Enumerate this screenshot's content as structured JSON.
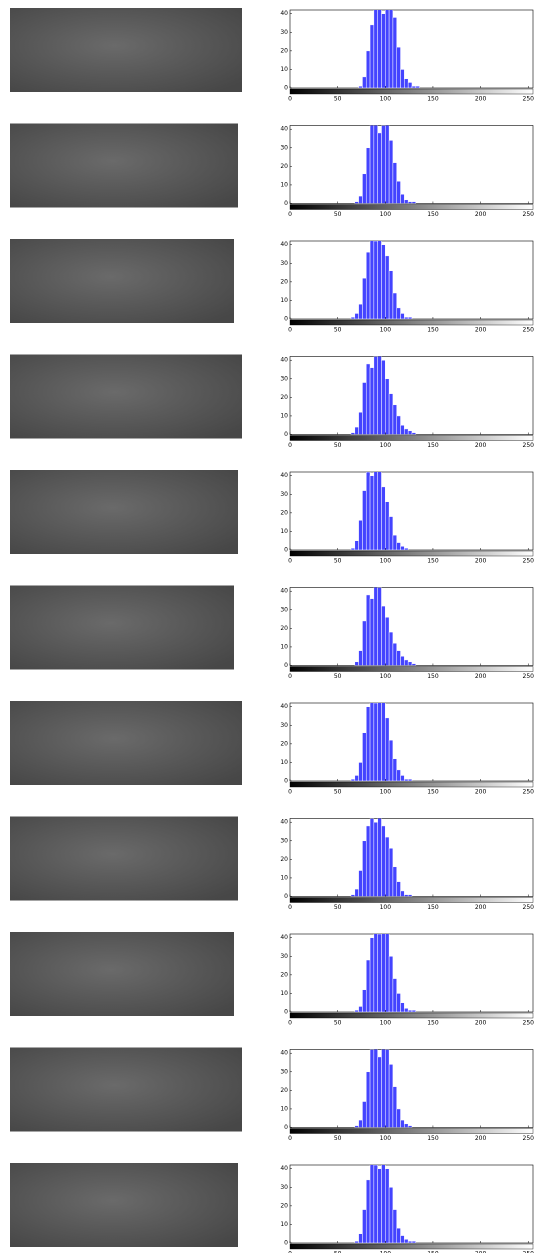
{
  "chart_data": [
    {
      "type": "histogram",
      "bins": [
        72,
        76,
        80,
        84,
        88,
        92,
        96,
        100,
        104,
        108,
        112,
        116,
        120,
        124,
        128,
        132,
        136,
        140,
        144
      ],
      "counts": [
        1,
        6,
        20,
        34,
        44,
        46,
        40,
        44,
        47,
        38,
        22,
        10,
        5,
        3,
        1,
        1,
        0,
        0
      ],
      "color": "#4444ff",
      "xlim": [
        0,
        255
      ],
      "ylim": [
        0,
        42
      ],
      "xticks": [
        0,
        50,
        100,
        150,
        200,
        250
      ],
      "yticks": [
        0,
        10,
        20,
        30,
        40
      ]
    },
    {
      "type": "histogram",
      "bins": [
        68,
        72,
        76,
        80,
        84,
        88,
        92,
        96,
        100,
        104,
        108,
        112,
        116,
        120,
        124,
        128,
        132,
        136,
        140
      ],
      "counts": [
        1,
        4,
        16,
        30,
        43,
        45,
        38,
        42,
        44,
        34,
        22,
        12,
        5,
        2,
        1,
        1,
        0,
        0
      ],
      "color": "#4444ff",
      "xlim": [
        0,
        255
      ],
      "ylim": [
        0,
        42
      ],
      "xticks": [
        0,
        50,
        100,
        150,
        200,
        250
      ],
      "yticks": [
        0,
        10,
        20,
        30,
        40
      ]
    },
    {
      "type": "histogram",
      "bins": [
        64,
        68,
        72,
        76,
        80,
        84,
        88,
        92,
        96,
        100,
        104,
        108,
        112,
        116,
        120,
        124,
        128,
        132,
        136
      ],
      "counts": [
        1,
        3,
        8,
        22,
        36,
        44,
        42,
        46,
        40,
        34,
        26,
        14,
        6,
        3,
        1,
        1,
        0,
        0
      ],
      "color": "#4444ff",
      "xlim": [
        0,
        255
      ],
      "ylim": [
        0,
        42
      ],
      "xticks": [
        0,
        50,
        100,
        150,
        200,
        250
      ],
      "yticks": [
        0,
        10,
        20,
        30,
        40
      ]
    },
    {
      "type": "histogram",
      "bins": [
        64,
        68,
        72,
        76,
        80,
        84,
        88,
        92,
        96,
        100,
        104,
        108,
        112,
        116,
        120,
        124,
        128,
        132,
        136
      ],
      "counts": [
        1,
        4,
        12,
        28,
        38,
        36,
        42,
        44,
        40,
        30,
        22,
        16,
        10,
        5,
        3,
        2,
        1,
        0
      ],
      "color": "#4444ff",
      "xlim": [
        0,
        255
      ],
      "ylim": [
        0,
        42
      ],
      "xticks": [
        0,
        50,
        100,
        150,
        200,
        250
      ],
      "yticks": [
        0,
        10,
        20,
        30,
        40
      ]
    },
    {
      "type": "histogram",
      "bins": [
        64,
        68,
        72,
        76,
        80,
        84,
        88,
        92,
        96,
        100,
        104,
        108,
        112,
        116,
        120,
        124,
        128,
        132,
        136
      ],
      "counts": [
        1,
        5,
        16,
        32,
        42,
        40,
        46,
        44,
        34,
        26,
        18,
        8,
        4,
        2,
        1,
        0,
        0,
        0
      ],
      "color": "#4444ff",
      "xlim": [
        0,
        255
      ],
      "ylim": [
        0,
        42
      ],
      "xticks": [
        0,
        50,
        100,
        150,
        200,
        250
      ],
      "yticks": [
        0,
        10,
        20,
        30,
        40
      ]
    },
    {
      "type": "histogram",
      "bins": [
        68,
        72,
        76,
        80,
        84,
        88,
        92,
        96,
        100,
        104,
        108,
        112,
        116,
        120,
        124,
        128,
        132,
        136,
        140
      ],
      "counts": [
        2,
        8,
        24,
        38,
        36,
        44,
        42,
        32,
        26,
        18,
        12,
        8,
        5,
        3,
        2,
        1,
        0,
        0
      ],
      "color": "#4444ff",
      "xlim": [
        0,
        255
      ],
      "ylim": [
        0,
        42
      ],
      "xticks": [
        0,
        50,
        100,
        150,
        200,
        250
      ],
      "yticks": [
        0,
        10,
        20,
        30,
        40
      ]
    },
    {
      "type": "histogram",
      "bins": [
        64,
        68,
        72,
        76,
        80,
        84,
        88,
        92,
        96,
        100,
        104,
        108,
        112,
        116,
        120,
        124,
        128,
        132,
        136
      ],
      "counts": [
        1,
        3,
        10,
        26,
        40,
        44,
        42,
        46,
        44,
        34,
        22,
        12,
        6,
        3,
        1,
        1,
        0,
        0
      ],
      "color": "#4444ff",
      "xlim": [
        0,
        255
      ],
      "ylim": [
        0,
        42
      ],
      "xticks": [
        0,
        50,
        100,
        150,
        200,
        250
      ],
      "yticks": [
        0,
        10,
        20,
        30,
        40
      ]
    },
    {
      "type": "histogram",
      "bins": [
        64,
        68,
        72,
        76,
        80,
        84,
        88,
        92,
        96,
        100,
        104,
        108,
        112,
        116,
        120,
        124,
        128,
        132,
        136
      ],
      "counts": [
        1,
        4,
        14,
        30,
        38,
        42,
        40,
        44,
        38,
        32,
        26,
        16,
        8,
        3,
        1,
        1,
        0,
        0
      ],
      "color": "#4444ff",
      "xlim": [
        0,
        255
      ],
      "ylim": [
        0,
        42
      ],
      "xticks": [
        0,
        50,
        100,
        150,
        200,
        250
      ],
      "yticks": [
        0,
        10,
        20,
        30,
        40
      ]
    },
    {
      "type": "histogram",
      "bins": [
        68,
        72,
        76,
        80,
        84,
        88,
        92,
        96,
        100,
        104,
        108,
        112,
        116,
        120,
        124,
        128,
        132,
        136,
        140
      ],
      "counts": [
        1,
        3,
        12,
        28,
        40,
        46,
        42,
        46,
        44,
        30,
        18,
        10,
        5,
        2,
        1,
        1,
        0,
        0
      ],
      "color": "#4444ff",
      "xlim": [
        0,
        255
      ],
      "ylim": [
        0,
        42
      ],
      "xticks": [
        0,
        50,
        100,
        150,
        200,
        250
      ],
      "yticks": [
        0,
        10,
        20,
        30,
        40
      ]
    },
    {
      "type": "histogram",
      "bins": [
        68,
        72,
        76,
        80,
        84,
        88,
        92,
        96,
        100,
        104,
        108,
        112,
        116,
        120,
        124,
        128,
        132,
        136,
        140
      ],
      "counts": [
        1,
        4,
        14,
        30,
        42,
        44,
        38,
        44,
        42,
        34,
        22,
        10,
        4,
        2,
        1,
        0,
        0,
        0
      ],
      "color": "#4444ff",
      "xlim": [
        0,
        255
      ],
      "ylim": [
        0,
        42
      ],
      "xticks": [
        0,
        50,
        100,
        150,
        200,
        250
      ],
      "yticks": [
        0,
        10,
        20,
        30,
        40
      ]
    },
    {
      "type": "histogram",
      "bins": [
        68,
        72,
        76,
        80,
        84,
        88,
        92,
        96,
        100,
        104,
        108,
        112,
        116,
        120,
        124,
        128,
        132,
        136,
        140
      ],
      "counts": [
        1,
        5,
        18,
        34,
        44,
        42,
        40,
        44,
        40,
        30,
        18,
        8,
        4,
        2,
        1,
        1,
        0,
        0
      ],
      "color": "#4444ff",
      "xlim": [
        0,
        255
      ],
      "ylim": [
        0,
        42
      ],
      "xticks": [
        0,
        50,
        100,
        150,
        200,
        250
      ],
      "yticks": [
        0,
        10,
        20,
        30,
        40
      ]
    }
  ]
}
